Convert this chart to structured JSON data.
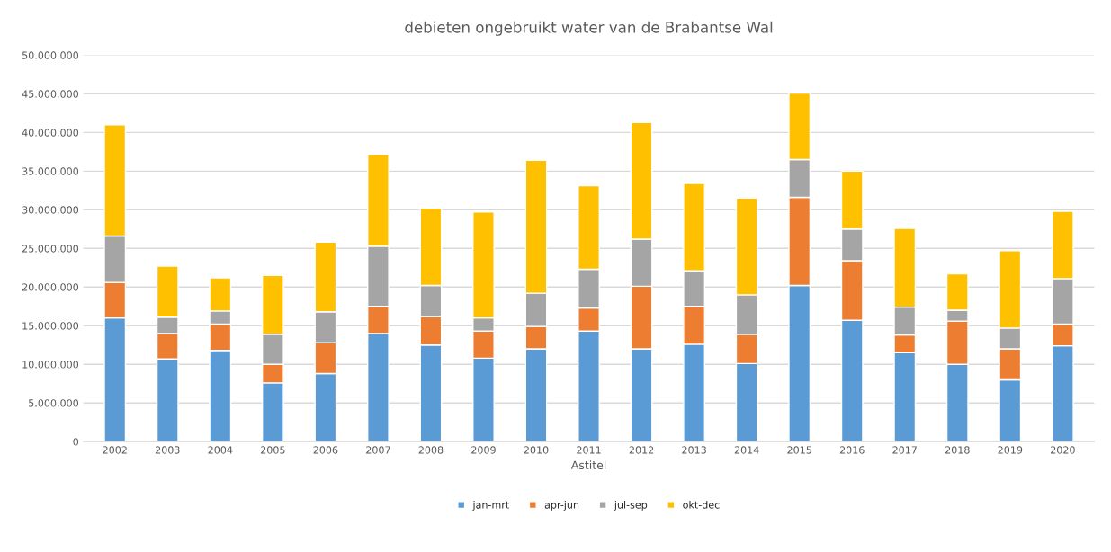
{
  "chart_data": {
    "type": "bar",
    "title": "debieten ongebruikt water van de Brabantse Wal",
    "xlabel": "Astitel",
    "stacked": true,
    "categories": [
      "2002",
      "2003",
      "2004",
      "2005",
      "2006",
      "2007",
      "2008",
      "2009",
      "2010",
      "2011",
      "2012",
      "2013",
      "2014",
      "2015",
      "2016",
      "2017",
      "2018",
      "2019",
      "2020"
    ],
    "series": [
      {
        "name": "jan-mrt",
        "color": "#5b9bd5",
        "values": [
          16000000,
          10700000,
          11800000,
          7600000,
          8800000,
          14000000,
          12500000,
          10800000,
          12000000,
          14300000,
          12000000,
          12600000,
          10100000,
          20200000,
          15700000,
          11500000,
          10000000,
          8000000,
          12400000
        ]
      },
      {
        "name": "apr-jun",
        "color": "#ed7d31",
        "values": [
          4600000,
          3300000,
          3400000,
          2400000,
          4000000,
          3500000,
          3700000,
          3500000,
          2900000,
          3000000,
          8100000,
          4900000,
          3800000,
          11400000,
          7700000,
          2300000,
          5600000,
          4000000,
          2800000
        ]
      },
      {
        "name": "jul-sep",
        "color": "#a5a5a5",
        "values": [
          6000000,
          2100000,
          1700000,
          3900000,
          4000000,
          7800000,
          4000000,
          1700000,
          4300000,
          5000000,
          6100000,
          4600000,
          5100000,
          4900000,
          4100000,
          3600000,
          1400000,
          2700000,
          5900000
        ]
      },
      {
        "name": "okt-dec",
        "color": "#ffc000",
        "values": [
          14400000,
          6600000,
          4300000,
          7600000,
          9000000,
          11900000,
          10000000,
          13700000,
          17200000,
          10800000,
          15100000,
          11300000,
          12500000,
          8600000,
          7500000,
          10200000,
          4700000,
          10000000,
          8700000
        ]
      }
    ],
    "ylim": [
      0,
      50000000
    ],
    "yticks": [
      0,
      {
        "value": 5000000,
        "label": "5.000.000"
      },
      {
        "value": 10000000,
        "label": "10.000.000"
      },
      {
        "value": 15000000,
        "label": "15.000.000"
      },
      {
        "value": 20000000,
        "label": "20.000.000"
      },
      {
        "value": 25000000,
        "label": "25.000.000"
      },
      {
        "value": 30000000,
        "label": "30.000.000"
      },
      {
        "value": 35000000,
        "label": "35.000.000"
      },
      {
        "value": 40000000,
        "label": "40.000.000"
      },
      {
        "value": 45000000,
        "label": "45.000.000"
      },
      {
        "value": 50000000,
        "label": "50.000.000"
      }
    ],
    "grid": "y",
    "legend": "bottom"
  }
}
